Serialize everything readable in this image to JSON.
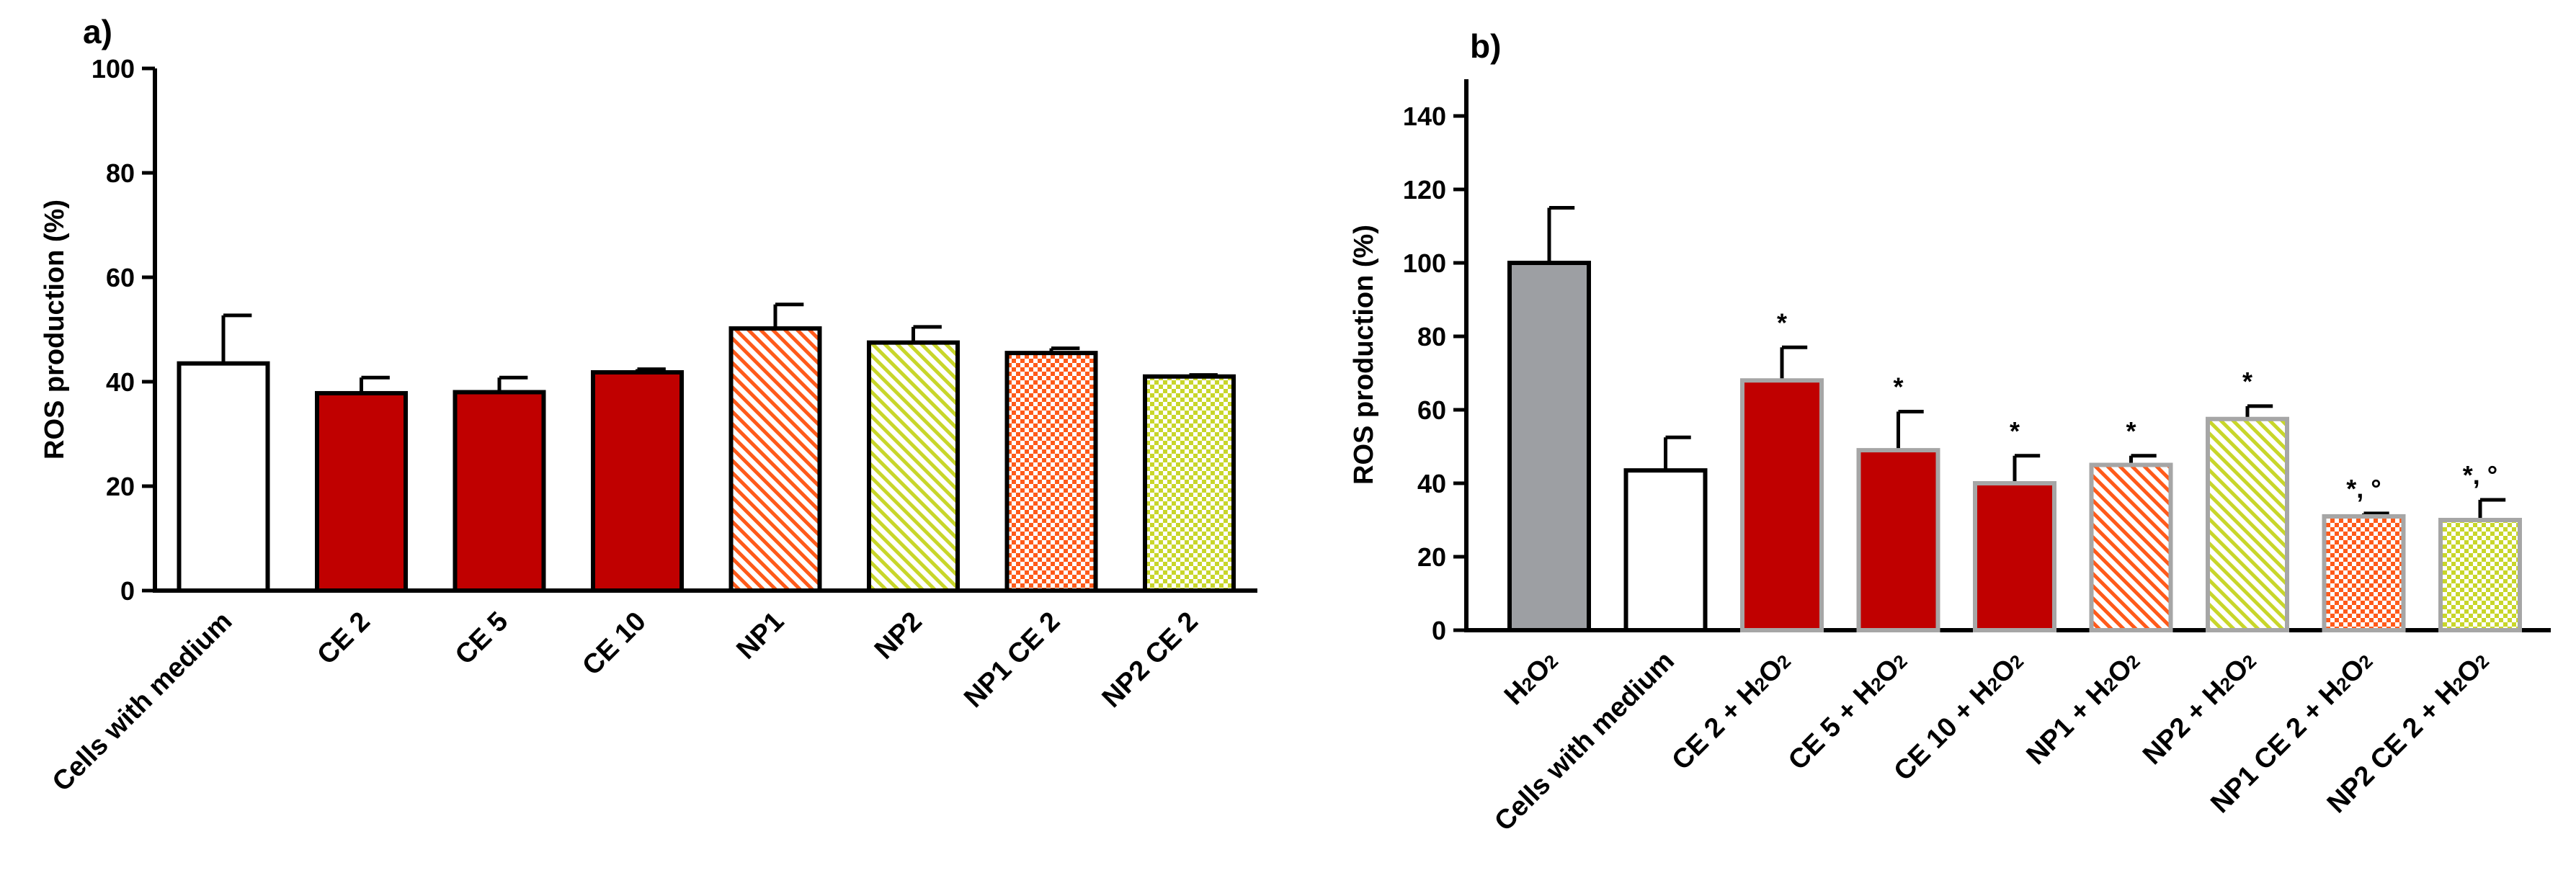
{
  "colors": {
    "white": "#ffffff",
    "red": "#c00000",
    "orange": "#ff5a1a",
    "yellowgreen": "#c8d62a",
    "gray": "#9d9fa3",
    "border_black": "#000000",
    "border_gray": "#a6a6a6"
  },
  "chart_data": [
    {
      "type": "bar",
      "panel_label": "a)",
      "ylabel": "ROS production (%)",
      "ylim": [
        0,
        100
      ],
      "yticks": [
        "0",
        "20",
        "40",
        "60",
        "80",
        "100"
      ],
      "categories": [
        "Cells with medium",
        "CE 2",
        "CE 5",
        "CE 10",
        "NP1",
        "NP2",
        "NP1 CE 2",
        "NP2 CE 2"
      ],
      "values": [
        43.5,
        37.8,
        38,
        41.8,
        50.2,
        47.5,
        45.5,
        41
      ],
      "errors": [
        9.2,
        3,
        2.8,
        0.6,
        4.6,
        3,
        0.9,
        0.3
      ],
      "fills": [
        "white",
        "red",
        "red",
        "red",
        "orange-hatch",
        "yellowgreen-hatch",
        "orange-check",
        "yellowgreen-check"
      ],
      "annotations": [
        "",
        "",
        "",
        "",
        "",
        "",
        "",
        ""
      ]
    },
    {
      "type": "bar",
      "panel_label": "b)",
      "ylabel": "ROS production (%)",
      "ylim": [
        0,
        150
      ],
      "yticks": [
        "0",
        "20",
        "40",
        "60",
        "80",
        "100",
        "120",
        "140"
      ],
      "categories": [
        {
          "main": "H",
          "sub": "2",
          "tail": "O",
          "sub2": "2",
          "after": ""
        },
        {
          "main": "Cells with medium",
          "sub": "",
          "tail": "",
          "sub2": "",
          "after": ""
        },
        {
          "main": "CE 2 + H",
          "sub": "2",
          "tail": "O",
          "sub2": "2",
          "after": ""
        },
        {
          "main": "CE 5 + H",
          "sub": "2",
          "tail": "O",
          "sub2": "2",
          "after": ""
        },
        {
          "main": "CE 10 + H",
          "sub": "2",
          "tail": "O",
          "sub2": "2",
          "after": ""
        },
        {
          "main": "NP1 + H",
          "sub": "2",
          "tail": "O",
          "sub2": "2",
          "after": ""
        },
        {
          "main": "NP2 + H",
          "sub": "2",
          "tail": "O",
          "sub2": "2",
          "after": ""
        },
        {
          "main": "NP1 CE 2 + H",
          "sub": "2",
          "tail": "O",
          "sub2": "2",
          "after": ""
        },
        {
          "main": "NP2 CE 2 + H",
          "sub": "2",
          "tail": "O",
          "sub2": "2",
          "after": ""
        }
      ],
      "values": [
        100,
        43.5,
        68,
        49,
        40,
        45,
        57.5,
        31,
        30
      ],
      "errors": [
        15,
        9,
        9,
        10.5,
        7.5,
        2.5,
        3.5,
        0.8,
        5.5
      ],
      "fills": [
        "gray",
        "white",
        "red",
        "red",
        "red",
        "orange-hatch",
        "yellowgreen-hatch",
        "orange-check",
        "yellowgreen-check"
      ],
      "annotations": [
        "",
        "",
        "*",
        "*",
        "*",
        "*",
        "*",
        "*, °",
        "*, °"
      ]
    }
  ]
}
